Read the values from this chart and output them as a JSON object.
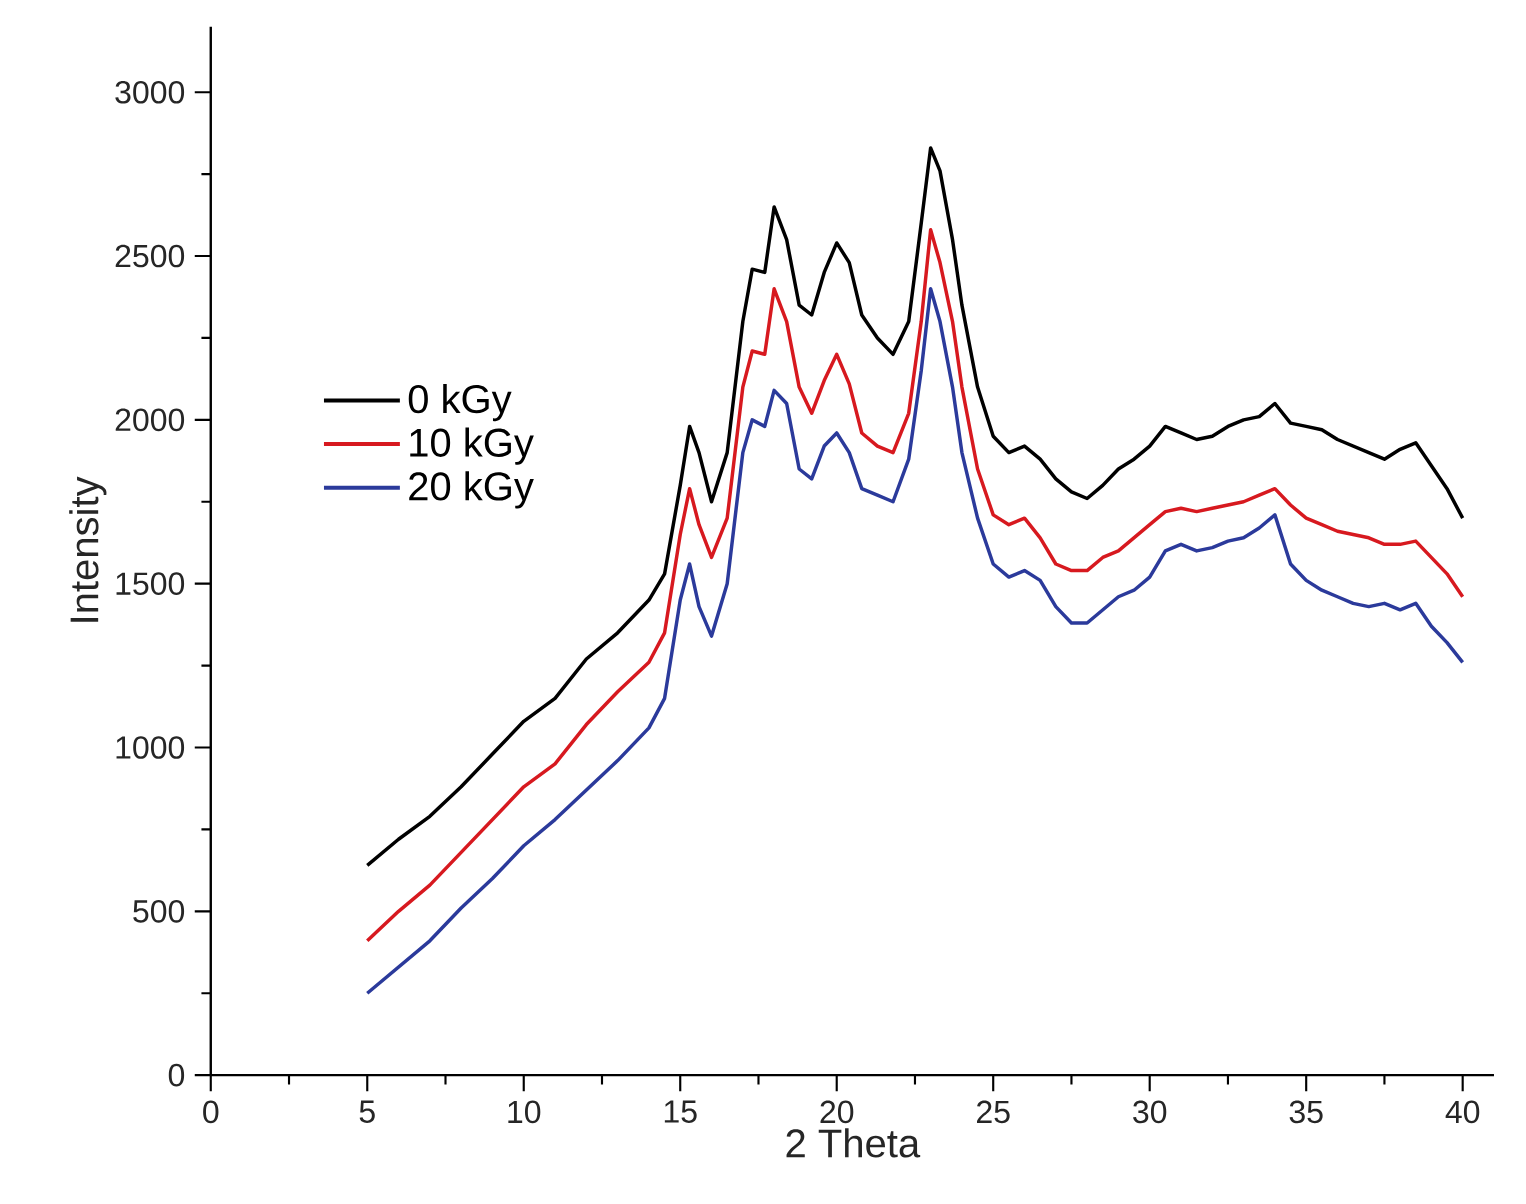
{
  "chart_data": {
    "type": "line",
    "xlabel": "2 Theta",
    "ylabel": "Intensity",
    "xlim": [
      0,
      41
    ],
    "ylim": [
      0,
      3200
    ],
    "xticks": [
      0,
      5,
      10,
      15,
      20,
      25,
      30,
      35,
      40
    ],
    "yticks": [
      0,
      500,
      1000,
      1500,
      2000,
      2500,
      3000
    ],
    "legend": "left",
    "grid": false,
    "marker": "none",
    "line_style": "solid",
    "x": [
      5,
      6,
      7,
      8,
      9,
      10,
      11,
      12,
      13,
      14,
      14.5,
      15,
      15.3,
      15.6,
      16,
      16.5,
      17,
      17.3,
      17.7,
      18,
      18.4,
      18.8,
      19.2,
      19.6,
      20,
      20.4,
      20.8,
      21.3,
      21.8,
      22.3,
      22.7,
      23,
      23.3,
      23.7,
      24,
      24.5,
      25,
      25.5,
      26,
      26.5,
      27,
      27.5,
      28,
      28.5,
      29,
      29.5,
      30,
      30.5,
      31,
      31.5,
      32,
      32.5,
      33,
      33.5,
      34,
      34.5,
      35,
      35.5,
      36,
      36.5,
      37,
      37.5,
      38,
      38.5,
      39,
      39.5,
      40
    ],
    "series": [
      {
        "name": "0 kGy",
        "color": "#000000",
        "values": [
          640,
          720,
          790,
          880,
          980,
          1080,
          1150,
          1270,
          1350,
          1450,
          1530,
          1800,
          1980,
          1900,
          1750,
          1900,
          2300,
          2460,
          2450,
          2650,
          2550,
          2350,
          2320,
          2450,
          2540,
          2480,
          2320,
          2250,
          2200,
          2300,
          2600,
          2830,
          2760,
          2550,
          2350,
          2100,
          1950,
          1900,
          1920,
          1880,
          1820,
          1780,
          1760,
          1800,
          1850,
          1880,
          1920,
          1980,
          1960,
          1940,
          1950,
          1980,
          2000,
          2010,
          2050,
          1990,
          1980,
          1970,
          1940,
          1920,
          1900,
          1880,
          1910,
          1930,
          1860,
          1790,
          1700
        ]
      },
      {
        "name": "10 kGy",
        "color": "#d7191f",
        "values": [
          410,
          500,
          580,
          680,
          780,
          880,
          950,
          1070,
          1170,
          1260,
          1350,
          1650,
          1790,
          1680,
          1580,
          1700,
          2100,
          2210,
          2200,
          2400,
          2300,
          2100,
          2020,
          2120,
          2200,
          2110,
          1960,
          1920,
          1900,
          2020,
          2300,
          2580,
          2480,
          2300,
          2100,
          1850,
          1710,
          1680,
          1700,
          1640,
          1560,
          1540,
          1540,
          1580,
          1600,
          1640,
          1680,
          1720,
          1730,
          1720,
          1730,
          1740,
          1750,
          1770,
          1790,
          1740,
          1700,
          1680,
          1660,
          1650,
          1640,
          1620,
          1620,
          1630,
          1580,
          1530,
          1460
        ]
      },
      {
        "name": "20 kGy",
        "color": "#2b3a9b",
        "values": [
          250,
          330,
          410,
          510,
          600,
          700,
          780,
          870,
          960,
          1060,
          1150,
          1450,
          1560,
          1430,
          1340,
          1500,
          1900,
          2000,
          1980,
          2090,
          2050,
          1850,
          1820,
          1920,
          1960,
          1900,
          1790,
          1770,
          1750,
          1880,
          2150,
          2400,
          2300,
          2100,
          1900,
          1700,
          1560,
          1520,
          1540,
          1510,
          1430,
          1380,
          1380,
          1420,
          1460,
          1480,
          1520,
          1600,
          1620,
          1600,
          1610,
          1630,
          1640,
          1670,
          1710,
          1560,
          1510,
          1480,
          1460,
          1440,
          1430,
          1440,
          1420,
          1440,
          1370,
          1320,
          1260
        ]
      }
    ]
  }
}
